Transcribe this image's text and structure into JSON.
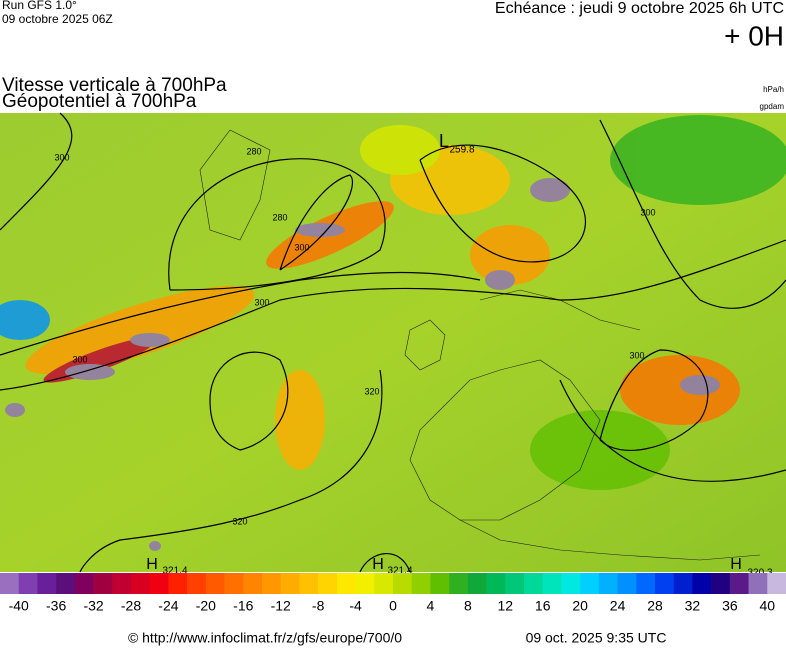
{
  "header": {
    "run": "Run GFS 1.0°",
    "run_date": "09 octobre 2025 06Z",
    "echeance": "Echéance : jeudi 9 octobre 2025 6h UTC",
    "offset": "+ 0H"
  },
  "titles": [
    "Vitesse verticale à 700hPa",
    "Géopotentiel à 700hPa"
  ],
  "units": [
    "hPa/h",
    "gpdam"
  ],
  "map_labels": [
    "300",
    "280",
    "280",
    "300",
    "300",
    "300",
    "300",
    "300",
    "320",
    "320",
    "L",
    "259.8",
    "H",
    "321.4",
    "H",
    "321.4",
    "H",
    "320.3"
  ],
  "colorbar": {
    "ticks": [
      -40,
      -36,
      -32,
      -28,
      -24,
      -20,
      -16,
      -12,
      -8,
      -4,
      0,
      4,
      8,
      12,
      16,
      20,
      24,
      28,
      32,
      36,
      40
    ],
    "colors": [
      "#9b6fc0",
      "#7f3fb0",
      "#6a1f9a",
      "#5a0f7a",
      "#80005f",
      "#a00040",
      "#c00030",
      "#d80020",
      "#f00010",
      "#ff2000",
      "#ff4000",
      "#ff5a00",
      "#ff7000",
      "#ff8400",
      "#ff9800",
      "#ffac00",
      "#ffc000",
      "#ffd400",
      "#ffe800",
      "#f0f000",
      "#d8e800",
      "#b8dc00",
      "#90d000",
      "#60c000",
      "#30b020",
      "#10a838",
      "#00b858",
      "#00c878",
      "#00d898",
      "#00e4bc",
      "#00e8e0",
      "#00d0ff",
      "#00b0ff",
      "#0090ff",
      "#0068ff",
      "#0040f0",
      "#0020d0",
      "#0000a8",
      "#200080",
      "#5a1a8a",
      "#9070b8",
      "#c8b8e0"
    ]
  },
  "footer": {
    "url": "© http://www.infoclimat.fr/z/gfs/europe/700/0",
    "timestamp": "09 oct. 2025  9:35 UTC"
  }
}
